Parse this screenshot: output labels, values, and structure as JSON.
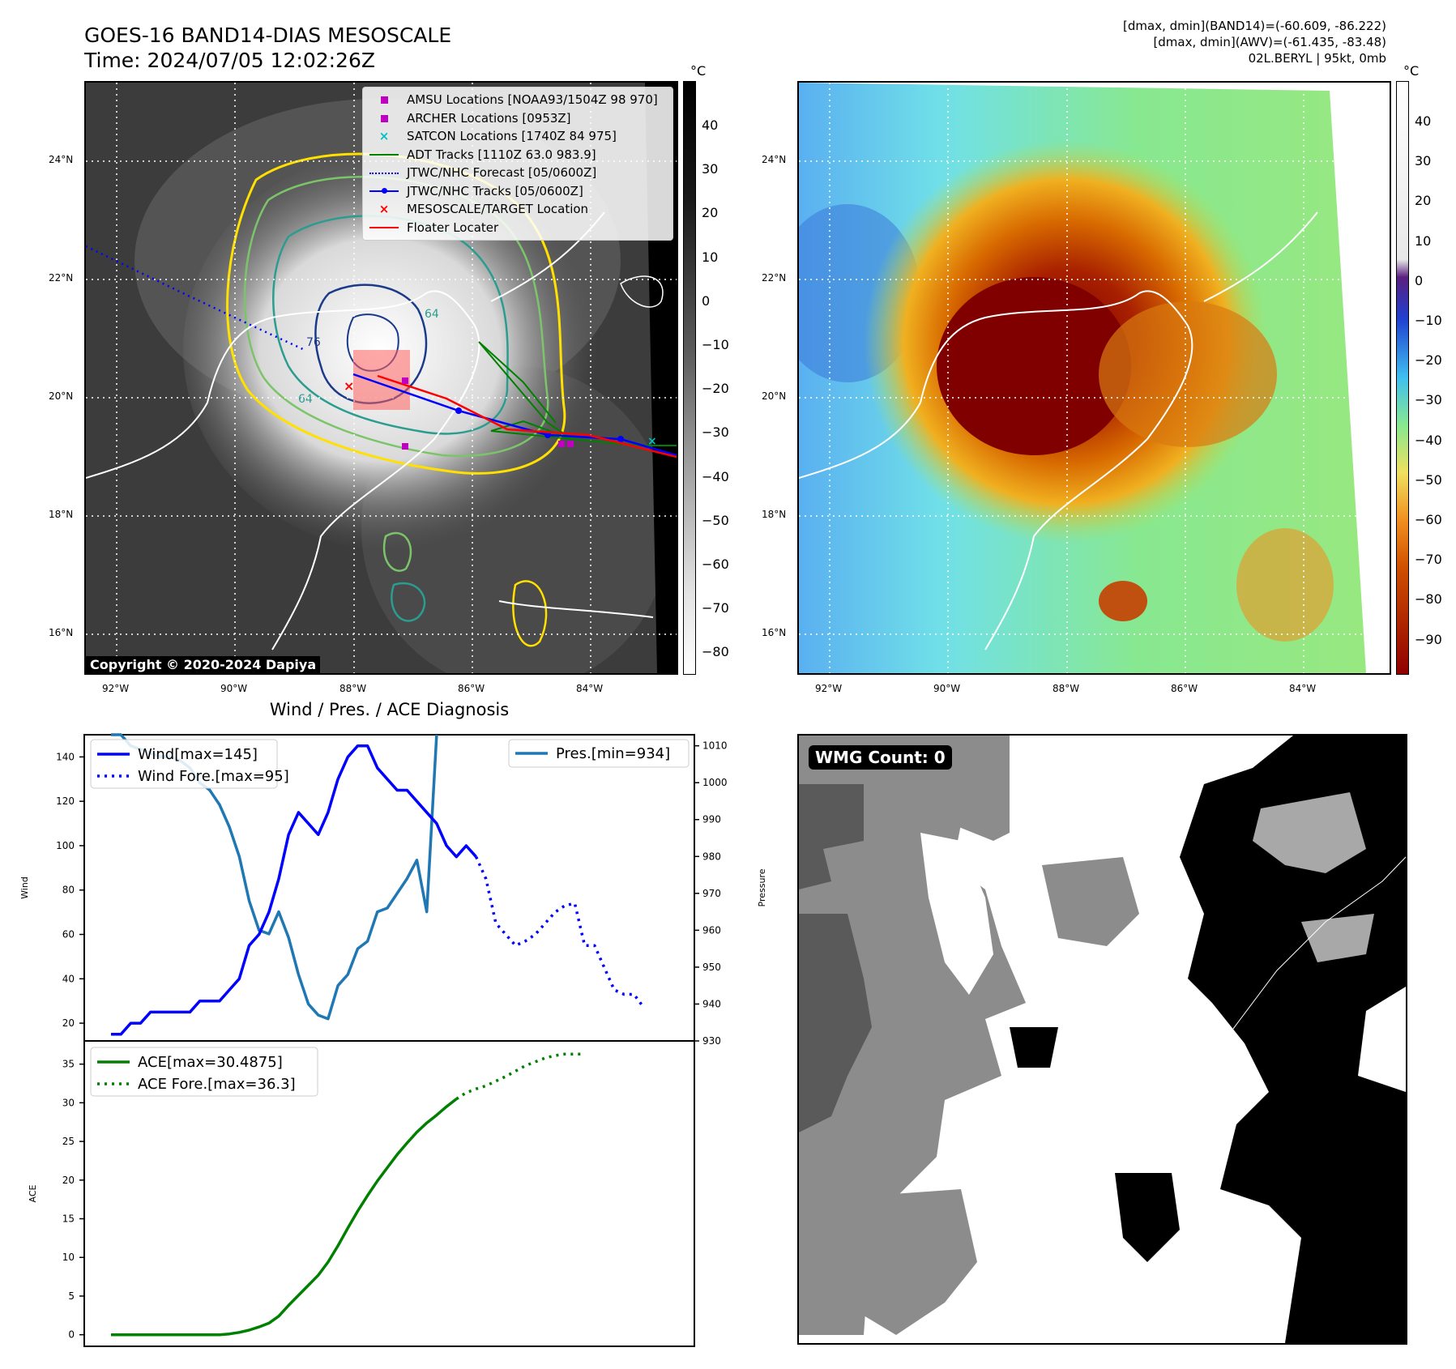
{
  "header": {
    "title_line1": "GOES-16 BAND14-DIAS MESOSCALE",
    "title_line2": "Time: 2024/07/05 12:02:26Z",
    "right_line1": "[dmax, dmin](BAND14)=(-60.609, -86.222)",
    "right_line2": "[dmax, dmin](AWV)=(-61.435, -83.48)",
    "right_line3": "02L.BERYL | 95kt, 0mb"
  },
  "maps": {
    "lat_labels": [
      "24°N",
      "22°N",
      "20°N",
      "18°N",
      "16°N"
    ],
    "lon_labels": [
      "92°W",
      "90°W",
      "88°W",
      "86°W",
      "84°W"
    ],
    "copyright": "Copyright © 2020-2024 Dapiya",
    "legend": [
      {
        "label": "AMSU Locations [NOAA93/1504Z 98 970]",
        "color": "#c000c0",
        "marker": "square"
      },
      {
        "label": "ARCHER Locations [0953Z]",
        "color": "#c000c0",
        "marker": "square"
      },
      {
        "label": "SATCON Locations [1740Z 84 975]",
        "color": "#00bfbf",
        "marker": "x"
      },
      {
        "label": "ADT Tracks [1110Z 63.0 983.9]",
        "color": "#008000",
        "marker": "line"
      },
      {
        "label": "JTWC/NHC Forecast [05/0600Z]",
        "color": "#0000ff",
        "marker": "dotted"
      },
      {
        "label": "JTWC/NHC Tracks [05/0600Z]",
        "color": "#0000ff",
        "marker": "line-dot"
      },
      {
        "label": "MESOSCALE/TARGET Location",
        "color": "#ff0000",
        "marker": "x"
      },
      {
        "label": "Floater Locater",
        "color": "#ff0000",
        "marker": "line"
      }
    ],
    "contour_labels": [
      "76",
      "64",
      "64"
    ],
    "cbar1": {
      "unit": "°C",
      "ticks": [
        "40",
        "30",
        "20",
        "10",
        "0",
        "−10",
        "−20",
        "−30",
        "−40",
        "−50",
        "−60",
        "−70",
        "−80"
      ]
    },
    "cbar2": {
      "unit": "°C",
      "ticks": [
        "40",
        "30",
        "20",
        "10",
        "0",
        "−10",
        "−20",
        "−30",
        "−40",
        "−50",
        "−60",
        "−70",
        "−80",
        "−90"
      ]
    },
    "wmg_label": "WMG Count: 0"
  },
  "chart_data": [
    {
      "type": "line",
      "title": "Wind / Pres. / ACE Diagnosis",
      "ylabel": "Wind",
      "ylabel_right": "Pressure",
      "ylim": [
        12,
        150
      ],
      "ylim_right": [
        930,
        1013
      ],
      "yticks": [
        20,
        40,
        60,
        80,
        100,
        120,
        140
      ],
      "yticks_right": [
        930,
        940,
        950,
        960,
        970,
        980,
        990,
        1000,
        1010
      ],
      "series": [
        {
          "name": "Wind[max=145]",
          "color": "#0000ff",
          "style": "solid",
          "values": [
            15,
            15,
            20,
            20,
            25,
            25,
            25,
            25,
            25,
            30,
            30,
            30,
            35,
            40,
            55,
            60,
            70,
            85,
            105,
            115,
            110,
            105,
            115,
            130,
            140,
            145,
            145,
            135,
            130,
            125,
            125,
            120,
            115,
            110,
            100,
            95,
            100,
            95
          ]
        },
        {
          "name": "Wind Fore.[max=95]",
          "color": "#0000ff",
          "style": "dotted",
          "values": [
            95,
            85,
            65,
            60,
            55,
            57,
            60,
            65,
            70,
            73,
            74,
            55,
            55,
            45,
            35,
            33,
            33,
            27
          ]
        },
        {
          "name": "Pres.[min=934]",
          "color": "#1f77b4",
          "style": "solid",
          "values": [
            1013,
            1013,
            1010,
            1009,
            1008,
            1007,
            1007,
            1006,
            1004,
            1000,
            998,
            994,
            988,
            980,
            968,
            960,
            959,
            965,
            958,
            948,
            940,
            937,
            936,
            945,
            948,
            955,
            957,
            965,
            966,
            970,
            974,
            979,
            965,
            1013
          ]
        }
      ]
    },
    {
      "type": "line",
      "ylabel": "ACE",
      "ylim": [
        -1.5,
        38
      ],
      "yticks": [
        0,
        5,
        10,
        15,
        20,
        25,
        30,
        35
      ],
      "series": [
        {
          "name": "ACE[max=30.4875]",
          "color": "#008000",
          "style": "solid",
          "values": [
            0,
            0,
            0,
            0,
            0,
            0,
            0,
            0,
            0,
            0,
            0,
            0,
            0.1,
            0.3,
            0.6,
            1.0,
            1.5,
            2.4,
            3.8,
            5.1,
            6.4,
            7.7,
            9.4,
            11.5,
            13.8,
            16.0,
            18.0,
            19.9,
            21.6,
            23.3,
            24.8,
            26.2,
            27.4,
            28.4,
            29.5,
            30.5
          ]
        },
        {
          "name": "ACE Fore.[max=36.3]",
          "color": "#008000",
          "style": "dotted",
          "values": [
            30.5,
            31.3,
            31.8,
            32.2,
            32.8,
            33.4,
            34.1,
            34.8,
            35.3,
            35.8,
            36.1,
            36.3,
            36.3,
            36.3
          ]
        }
      ]
    }
  ]
}
